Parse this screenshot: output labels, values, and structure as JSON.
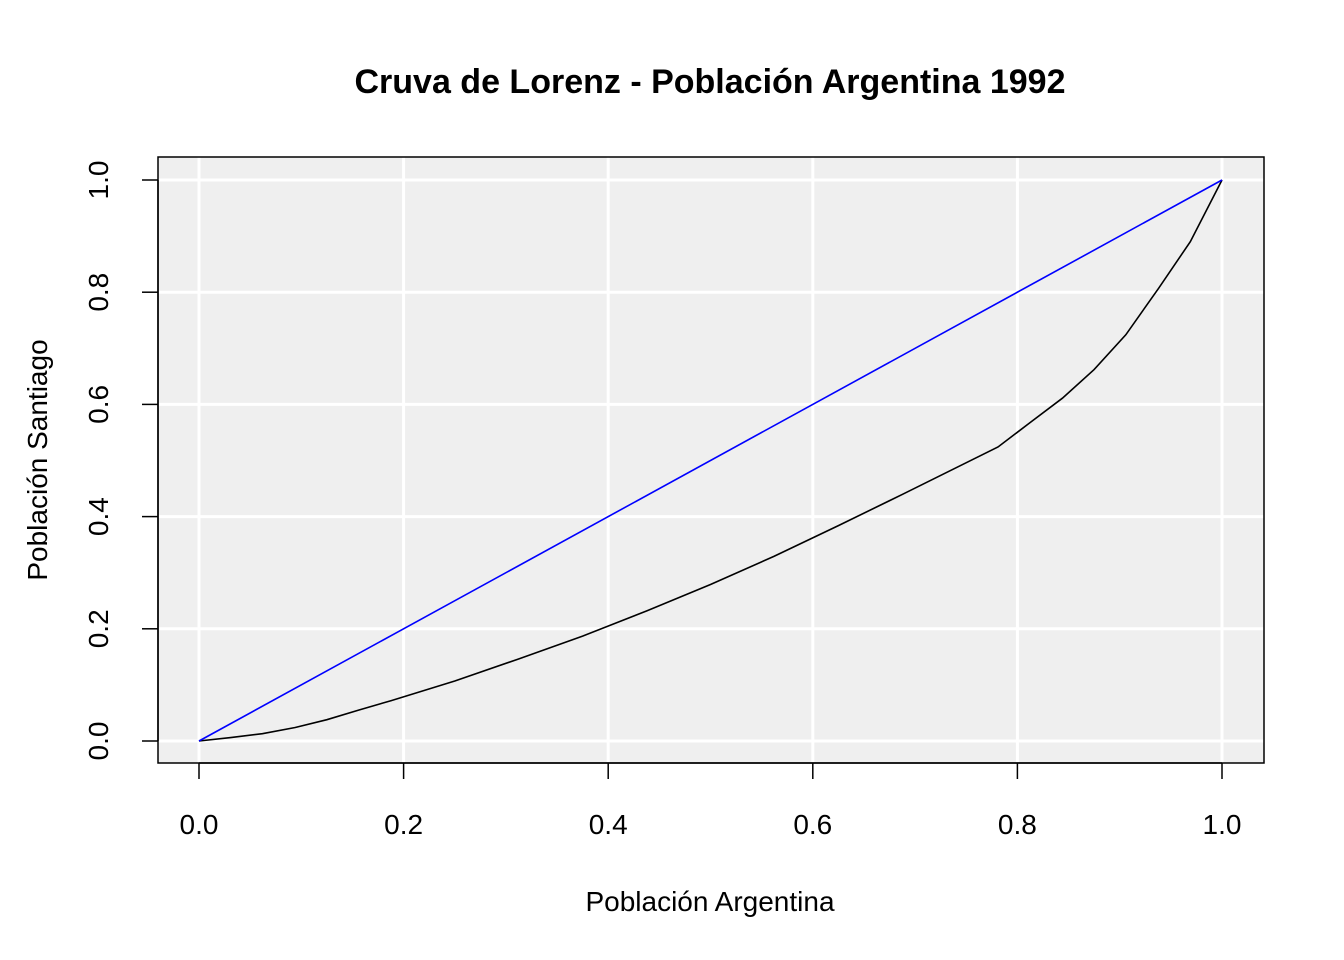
{
  "chart_data": {
    "type": "line",
    "title": "Cruva de Lorenz - Población Argentina 1992",
    "xlabel": "Población Argentina",
    "ylabel": "Población Santiago",
    "xlim": [
      0,
      1
    ],
    "ylim": [
      0,
      1
    ],
    "x_ticks": [
      "0.0",
      "0.2",
      "0.4",
      "0.6",
      "0.8",
      "1.0"
    ],
    "y_ticks": [
      "0.0",
      "0.2",
      "0.4",
      "0.6",
      "0.8",
      "1.0"
    ],
    "grid": true,
    "background": "#efefef",
    "grid_color": "#ffffff",
    "legend": "none",
    "series": [
      {
        "color": "#000000",
        "x": [
          0,
          0.031,
          0.062,
          0.094,
          0.125,
          0.156,
          0.188,
          0.25,
          0.312,
          0.375,
          0.438,
          0.5,
          0.562,
          0.625,
          0.688,
          0.75,
          0.781,
          0.812,
          0.844,
          0.875,
          0.906,
          0.938,
          0.969,
          1.0
        ],
        "y": [
          0,
          0.006,
          0.013,
          0.024,
          0.038,
          0.055,
          0.072,
          0.107,
          0.146,
          0.187,
          0.232,
          0.279,
          0.329,
          0.384,
          0.44,
          0.496,
          0.524,
          0.567,
          0.611,
          0.662,
          0.724,
          0.807,
          0.89,
          1.0
        ]
      },
      {
        "color": "#0000ff",
        "x": [
          0,
          1
        ],
        "y": [
          0,
          1
        ]
      }
    ]
  }
}
